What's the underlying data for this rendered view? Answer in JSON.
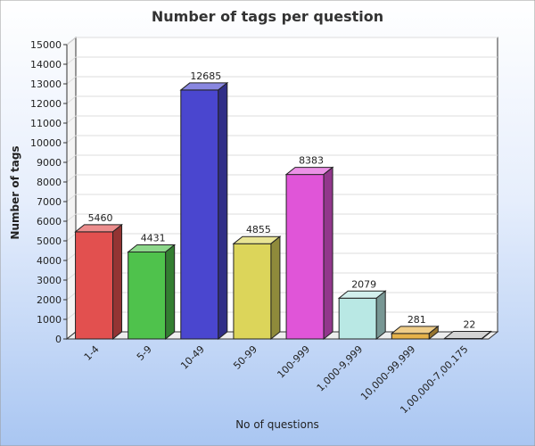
{
  "chart_data": {
    "type": "bar",
    "title": "Number of tags per question",
    "xlabel": "No of questions",
    "ylabel": "Number of tags",
    "ylim": [
      0,
      15000
    ],
    "ytick_step": 1000,
    "grid": true,
    "categories": [
      "1-4",
      "5-9",
      "10-49",
      "50-99",
      "100-999",
      "1,000-9,999",
      "10,000-99,999",
      "1,00,000-7,00,175"
    ],
    "values": [
      5460,
      4431,
      12685,
      4855,
      8383,
      2079,
      281,
      22
    ],
    "colors": [
      "#e2504f",
      "#4fc24c",
      "#4a46cf",
      "#dcd55a",
      "#e055d8",
      "#b9e8e4",
      "#e6b24a",
      "#bcbcbc"
    ]
  }
}
